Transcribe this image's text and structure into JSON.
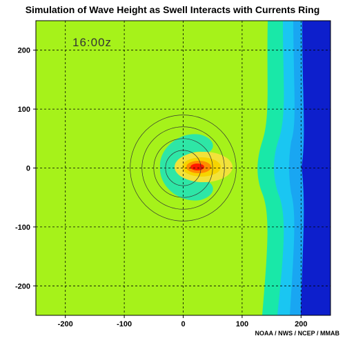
{
  "title": "Simulation of Wave Height as Swell Interacts with Currents Ring",
  "time_label": "16:00z",
  "credit": "NOAA / NWS / NCEP / MMAB",
  "colors": {
    "background_field": "#a6f21a",
    "far_edge_band": "#0d1fcc",
    "mid_band": "#1ac6f2",
    "cyan_band": "#19e8a8",
    "low_patch": "#2ee6a6",
    "peak": "#ff1a00",
    "high": "#ff8c00",
    "mid_high": "#f7d400"
  },
  "chart_data": {
    "type": "heatmap",
    "xlim": [
      -250,
      250
    ],
    "ylim": [
      -250,
      250
    ],
    "x_ticks": [
      -200,
      -100,
      0,
      100,
      200
    ],
    "y_ticks": [
      200,
      100,
      0,
      -100,
      -200
    ],
    "grid": true,
    "current_ring": {
      "center": [
        0,
        0
      ],
      "radii": [
        30,
        50,
        70,
        90
      ]
    },
    "wave_peak_center": [
      25,
      0
    ]
  }
}
